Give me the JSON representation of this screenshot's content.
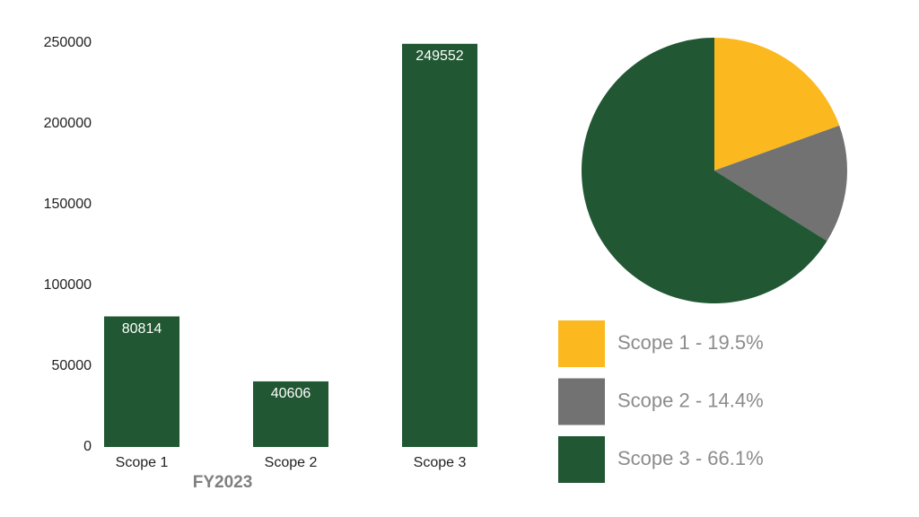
{
  "chart_data": [
    {
      "type": "bar",
      "xlabel": "FY2023",
      "categories": [
        "Scope 1",
        "Scope 2",
        "Scope 3"
      ],
      "values": [
        80814,
        40606,
        249552
      ],
      "color": "#215732",
      "ylim": [
        0,
        250000
      ],
      "yticks": [
        0,
        50000,
        100000,
        150000,
        200000,
        250000
      ],
      "grid": false
    },
    {
      "type": "pie",
      "categories": [
        "Scope 1 - 19.5%",
        "Scope 2 - 14.4%",
        "Scope 3 - 66.1%"
      ],
      "values": [
        19.5,
        14.4,
        66.1
      ],
      "colors": [
        "#fbb91f",
        "#717271",
        "#215732"
      ]
    }
  ]
}
